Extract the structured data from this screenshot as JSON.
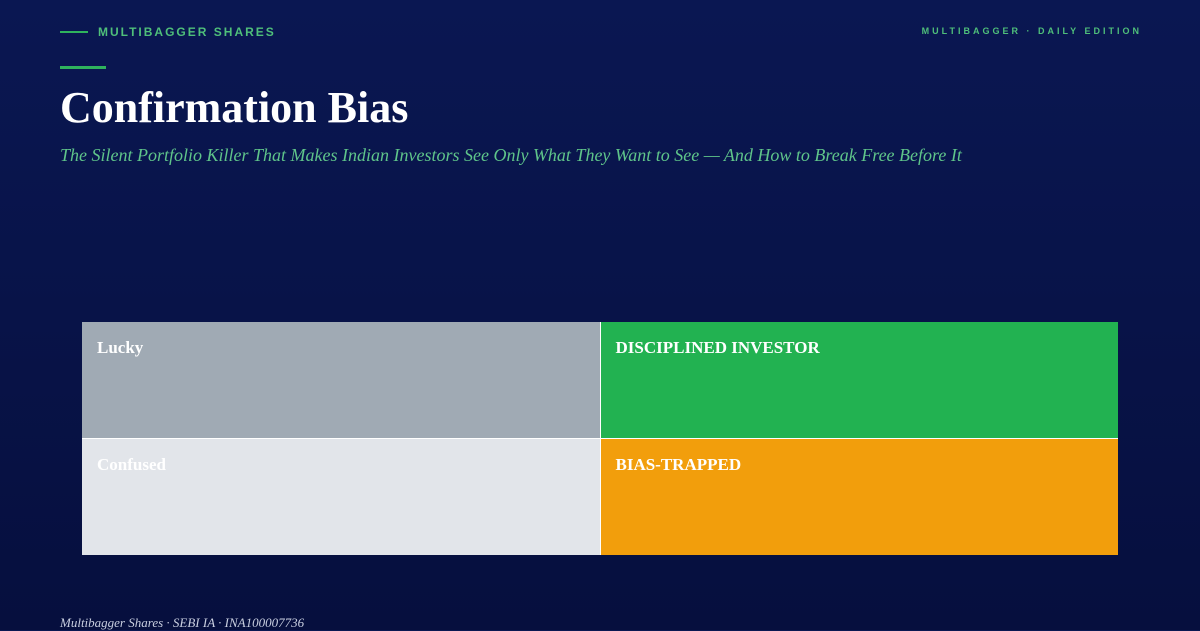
{
  "header": {
    "brand": "MULTIBAGGER SHARES",
    "edition": "MULTIBAGGER · DAILY EDITION"
  },
  "title": "Confirmation Bias",
  "subtitle": "The Silent Portfolio Killer That Makes Indian Investors See Only What They Want to See — And How to Break Free Before It",
  "quadrants": [
    {
      "label": "Lucky",
      "color": "#a0aab4"
    },
    {
      "label": "DISCIPLINED INVESTOR",
      "color": "#22b251"
    },
    {
      "label": "Confused",
      "color": "#e2e5ea"
    },
    {
      "label": "BIAS-TRAPPED",
      "color": "#f29e0c"
    }
  ],
  "footer": "Multibagger Shares · SEBI IA · INA100007736"
}
